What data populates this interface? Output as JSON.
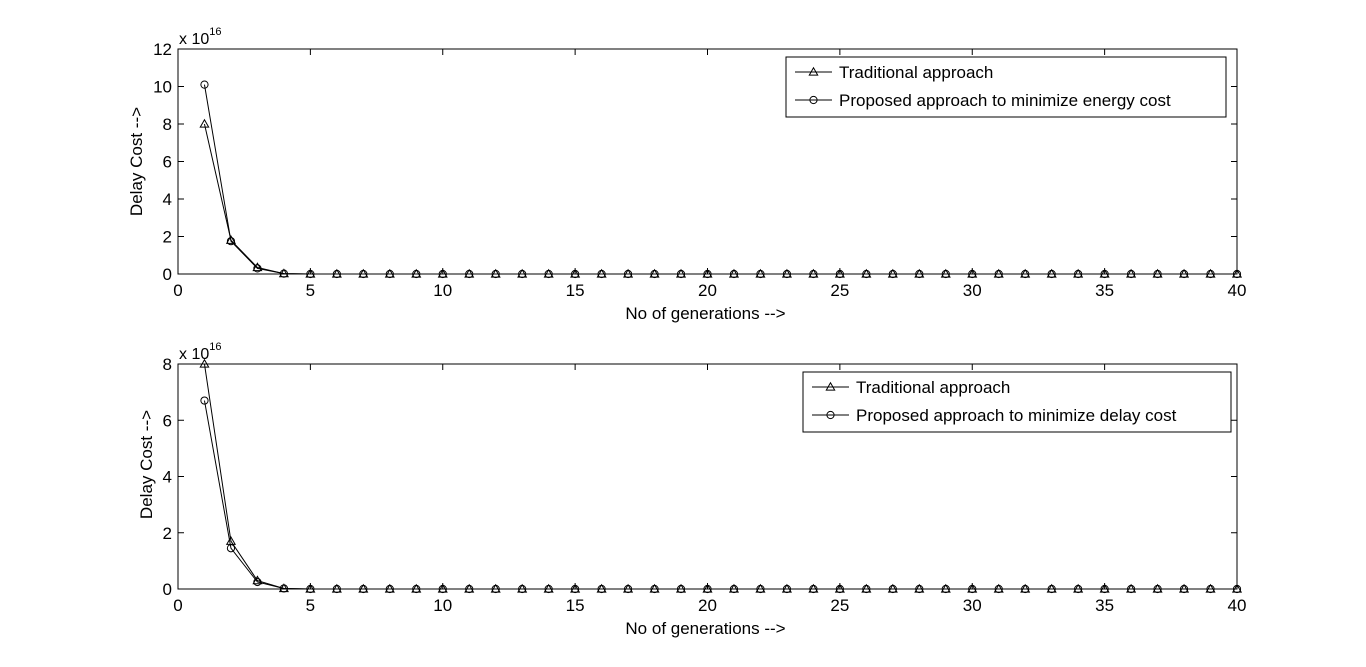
{
  "chart_data": [
    {
      "type": "line",
      "xlabel": "No of generations -->",
      "ylabel": "Delay Cost -->",
      "xlim": [
        0,
        40
      ],
      "ylim": [
        0,
        12
      ],
      "xticks": [
        0,
        5,
        10,
        15,
        20,
        25,
        30,
        35,
        40
      ],
      "yticks": [
        0,
        2,
        4,
        6,
        8,
        10,
        12
      ],
      "xtick_labels": [
        "0",
        "5",
        "10",
        "15",
        "20",
        "25",
        "30",
        "35",
        "40"
      ],
      "ytick_labels": [
        "0",
        "2",
        "4",
        "6",
        "8",
        "10",
        "12"
      ],
      "y_multiplier": {
        "base": "x 10",
        "power": "16"
      },
      "grid": false,
      "legend_position": "top-right",
      "x": [
        1,
        2,
        3,
        4,
        5,
        6,
        7,
        8,
        9,
        10,
        11,
        12,
        13,
        14,
        15,
        16,
        17,
        18,
        19,
        20,
        21,
        22,
        23,
        24,
        25,
        26,
        27,
        28,
        29,
        30,
        31,
        32,
        33,
        34,
        35,
        36,
        37,
        38,
        39,
        40
      ],
      "series": [
        {
          "name": "Traditional approach",
          "marker": "triangle",
          "color": "#000000",
          "values": [
            8.0,
            1.8,
            0.35,
            0.02,
            0,
            0,
            0,
            0,
            0,
            0,
            0,
            0,
            0,
            0,
            0,
            0,
            0,
            0,
            0,
            0,
            0,
            0,
            0,
            0,
            0,
            0,
            0,
            0,
            0,
            0,
            0,
            0,
            0,
            0,
            0,
            0,
            0,
            0,
            0,
            0
          ]
        },
        {
          "name": "Proposed approach to minimize energy cost",
          "marker": "circle",
          "color": "#000000",
          "values": [
            10.1,
            1.75,
            0.3,
            0.02,
            0,
            0,
            0,
            0,
            0,
            0,
            0,
            0,
            0,
            0,
            0,
            0,
            0,
            0,
            0,
            0,
            0,
            0,
            0,
            0,
            0,
            0,
            0,
            0,
            0,
            0,
            0,
            0,
            0,
            0,
            0,
            0,
            0,
            0,
            0,
            0
          ]
        }
      ]
    },
    {
      "type": "line",
      "xlabel": "No of generations -->",
      "ylabel": "Delay Cost -->",
      "xlim": [
        0,
        40
      ],
      "ylim": [
        0,
        8
      ],
      "xticks": [
        0,
        5,
        10,
        15,
        20,
        25,
        30,
        35,
        40
      ],
      "yticks": [
        0,
        2,
        4,
        6,
        8
      ],
      "xtick_labels": [
        "0",
        "5",
        "10",
        "15",
        "20",
        "25",
        "30",
        "35",
        "40"
      ],
      "ytick_labels": [
        "0",
        "2",
        "4",
        "6",
        "8"
      ],
      "y_multiplier": {
        "base": "x 10",
        "power": "16"
      },
      "grid": false,
      "legend_position": "top-right",
      "x": [
        1,
        2,
        3,
        4,
        5,
        6,
        7,
        8,
        9,
        10,
        11,
        12,
        13,
        14,
        15,
        16,
        17,
        18,
        19,
        20,
        21,
        22,
        23,
        24,
        25,
        26,
        27,
        28,
        29,
        30,
        31,
        32,
        33,
        34,
        35,
        36,
        37,
        38,
        39,
        40
      ],
      "series": [
        {
          "name": "Traditional approach",
          "marker": "triangle",
          "color": "#000000",
          "values": [
            8.0,
            1.7,
            0.3,
            0.02,
            0,
            0,
            0,
            0,
            0,
            0,
            0,
            0,
            0,
            0,
            0,
            0,
            0,
            0,
            0,
            0,
            0,
            0,
            0,
            0,
            0,
            0,
            0,
            0,
            0,
            0,
            0,
            0,
            0,
            0,
            0,
            0,
            0,
            0,
            0,
            0
          ]
        },
        {
          "name": "Proposed approach to minimize delay cost",
          "marker": "circle",
          "color": "#000000",
          "values": [
            6.7,
            1.45,
            0.25,
            0.02,
            0,
            0,
            0,
            0,
            0,
            0,
            0,
            0,
            0,
            0,
            0,
            0,
            0,
            0,
            0,
            0,
            0,
            0,
            0,
            0,
            0,
            0,
            0,
            0,
            0,
            0,
            0,
            0,
            0,
            0,
            0,
            0,
            0,
            0,
            0,
            0
          ]
        }
      ]
    }
  ]
}
